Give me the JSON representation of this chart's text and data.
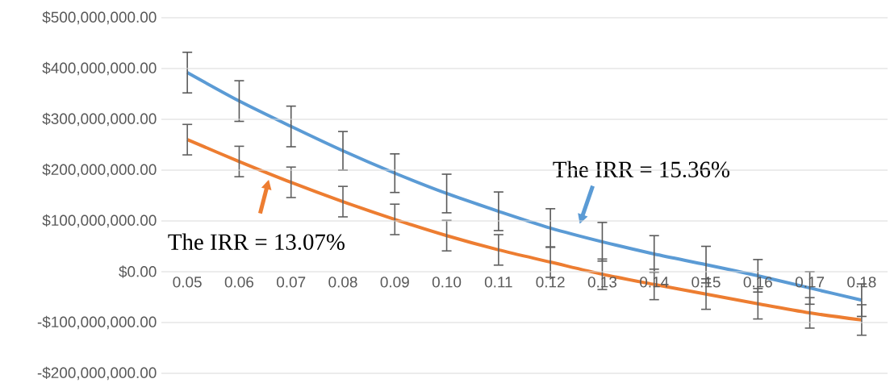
{
  "chart_data": {
    "type": "line",
    "grid": "y",
    "categories": [
      "0.05",
      "0.06",
      "0.07",
      "0.08",
      "0.09",
      "0.10",
      "0.11",
      "0.12",
      "0.13",
      "0.14",
      "0.15",
      "0.16",
      "0.17",
      "0.18"
    ],
    "series": [
      {
        "color": "#5b9bd5",
        "values": [
          392000000,
          336000000,
          286000000,
          238000000,
          194000000,
          154000000,
          119000000,
          86000000,
          59000000,
          35000000,
          14000000,
          -8000000,
          -32000000,
          -56000000
        ],
        "errors": [
          40000000,
          40000000,
          40000000,
          38000000,
          38000000,
          38000000,
          38000000,
          38000000,
          38000000,
          36000000,
          36000000,
          32000000,
          32000000,
          32000000
        ]
      },
      {
        "color": "#ed7d31",
        "values": [
          260000000,
          217000000,
          176000000,
          138000000,
          103000000,
          71000000,
          43000000,
          19000000,
          -5000000,
          -25000000,
          -44000000,
          -63000000,
          -81000000,
          -95000000
        ],
        "errors": [
          30000000,
          30000000,
          30000000,
          30000000,
          30000000,
          30000000,
          30000000,
          30000000,
          30000000,
          30000000,
          30000000,
          30000000,
          30000000,
          30000000
        ]
      }
    ],
    "ylim": [
      -200000000,
      500000000
    ],
    "yticks": [
      {
        "value": -200000000,
        "label": "-$200,000,000.00"
      },
      {
        "value": -100000000,
        "label": "-$100,000,000.00"
      },
      {
        "value": 0,
        "label": "$0.00"
      },
      {
        "value": 100000000,
        "label": "$100,000,000.00"
      },
      {
        "value": 200000000,
        "label": "$200,000,000.00"
      },
      {
        "value": 300000000,
        "label": "$300,000,000.00"
      },
      {
        "value": 400000000,
        "label": "$400,000,000.00"
      },
      {
        "value": 500000000,
        "label": "$500,000,000.00"
      }
    ],
    "annotations": [
      "The IRR = 15.36%",
      "The IRR = 13.07%"
    ]
  }
}
